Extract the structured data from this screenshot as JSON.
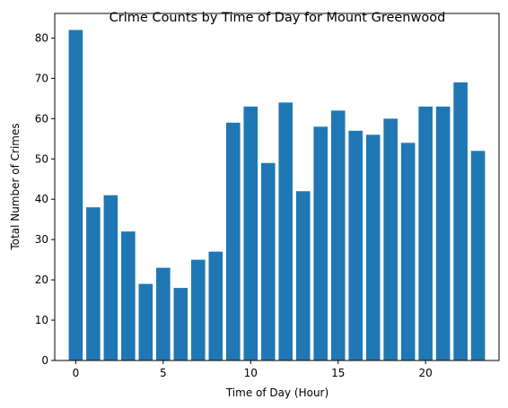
{
  "chart_data": {
    "type": "bar",
    "title": "Crime Counts by Time of Day for Mount Greenwood",
    "xlabel": "Time of Day (Hour)",
    "ylabel": "Total Number of Crimes",
    "x": [
      0,
      1,
      2,
      3,
      4,
      5,
      6,
      7,
      8,
      9,
      10,
      11,
      12,
      13,
      14,
      15,
      16,
      17,
      18,
      19,
      20,
      21,
      22,
      23
    ],
    "values": [
      82,
      38,
      41,
      32,
      19,
      23,
      18,
      25,
      27,
      59,
      63,
      49,
      64,
      42,
      58,
      62,
      57,
      56,
      60,
      54,
      63,
      63,
      69,
      52
    ],
    "xlim": [
      -1.2,
      24.2
    ],
    "ylim": [
      0,
      86.1
    ],
    "xticks": [
      0,
      5,
      10,
      15,
      20
    ],
    "yticks": [
      0,
      10,
      20,
      30,
      40,
      50,
      60,
      70,
      80
    ],
    "bar_color": "#1f77b4",
    "grid": false,
    "legend": false
  }
}
